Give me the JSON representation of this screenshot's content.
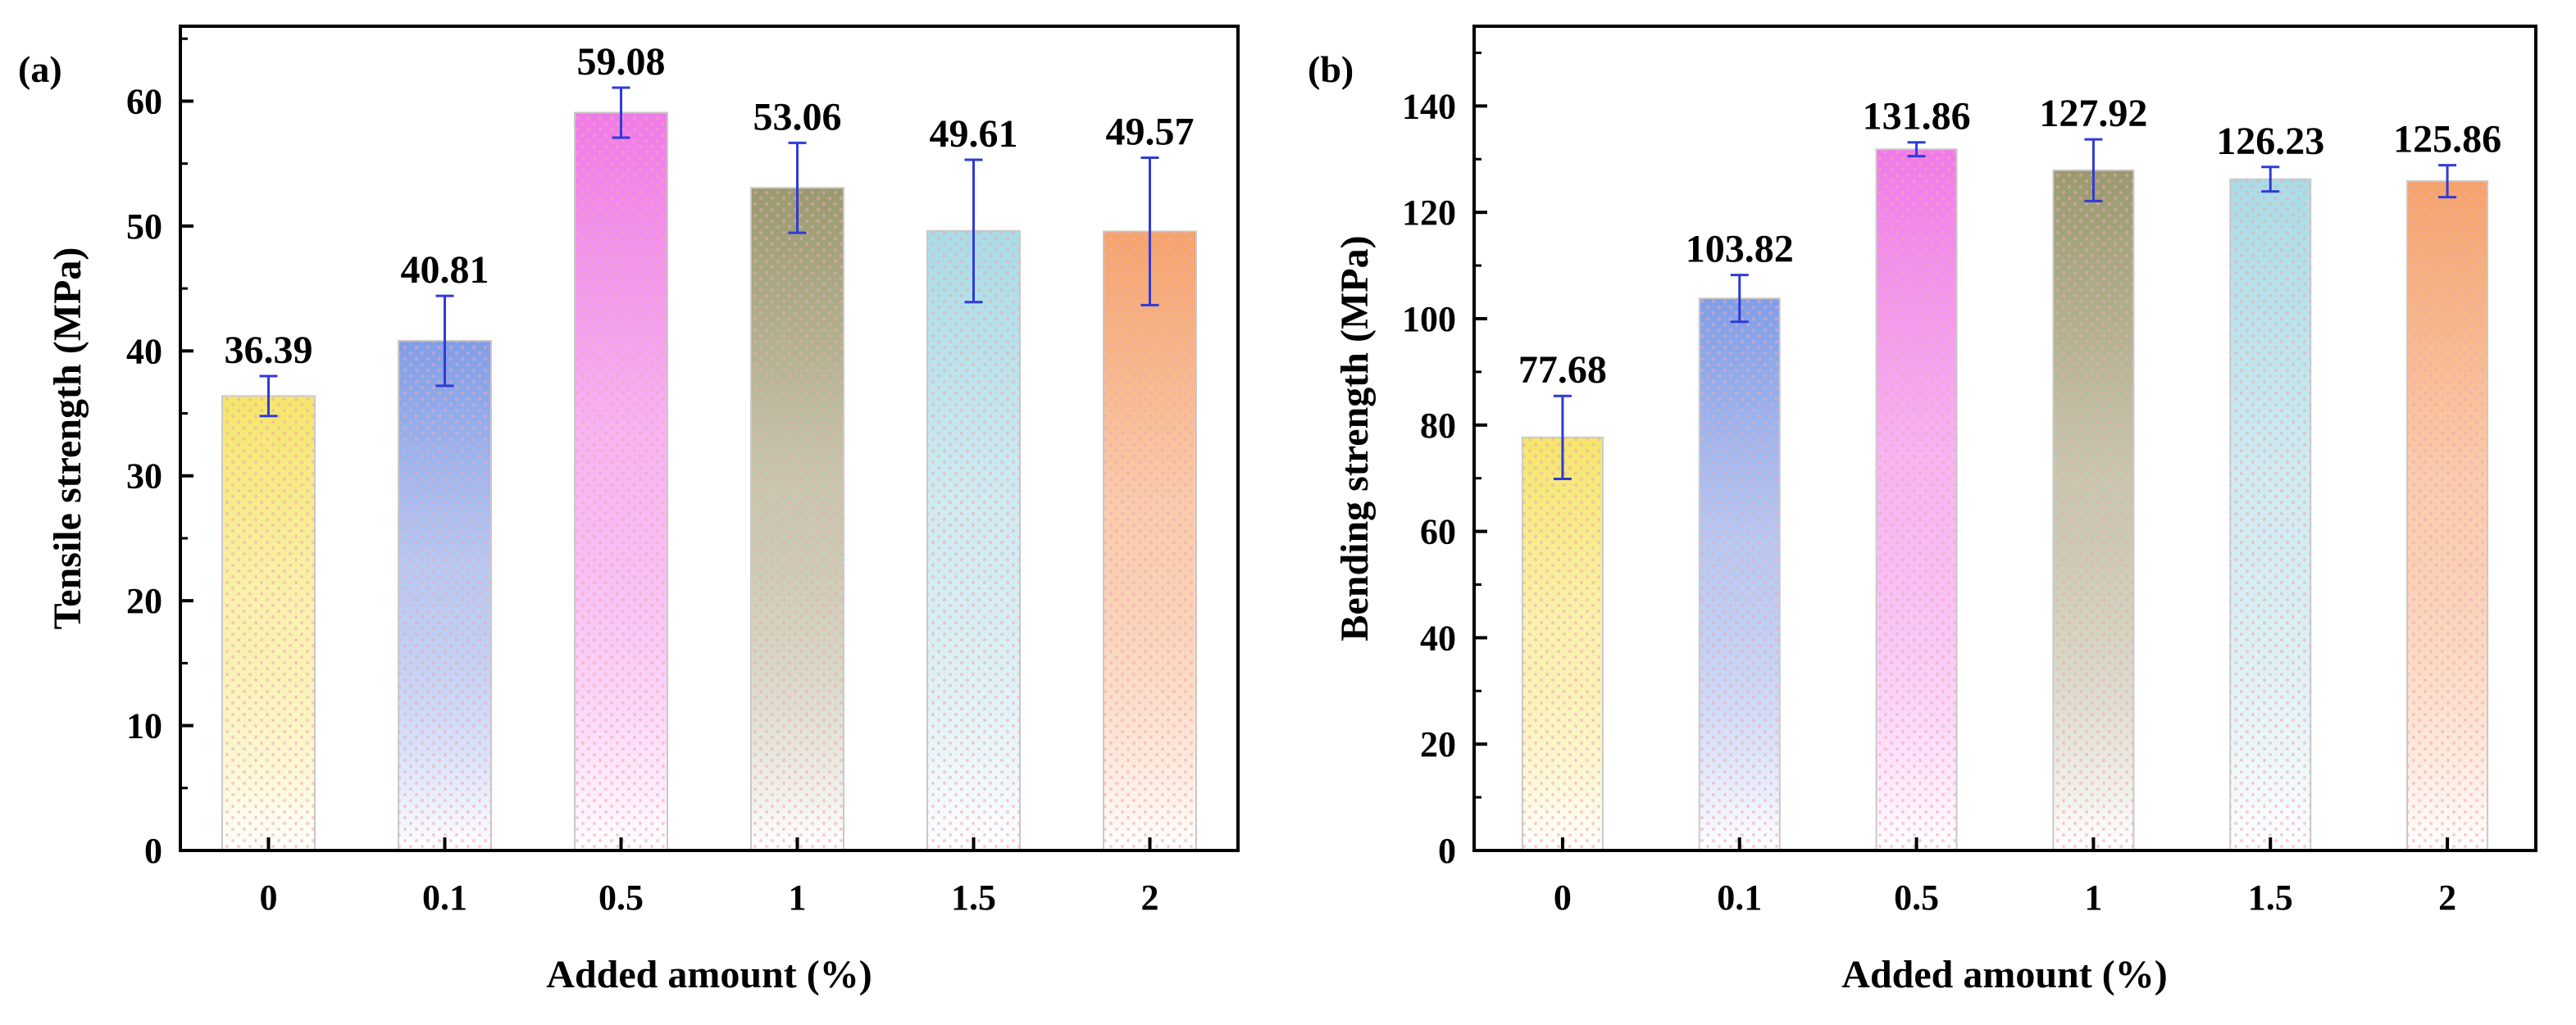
{
  "chart_data": [
    {
      "type": "bar",
      "panel": "(a)",
      "title": "",
      "xlabel": "Added amount (%)",
      "ylabel": "Tensile strength (MPa)",
      "categories": [
        "0",
        "0.1",
        "0.5",
        "1",
        "1.5",
        "2"
      ],
      "values": [
        36.39,
        40.81,
        59.08,
        53.06,
        49.61,
        49.57
      ],
      "errors": [
        1.6,
        3.6,
        2.0,
        3.6,
        5.7,
        5.9
      ],
      "value_labels": [
        "36.39",
        "40.81",
        "59.08",
        "53.06",
        "49.61",
        "49.57"
      ],
      "ylim": [
        0,
        66
      ],
      "yticks": [
        0,
        10,
        20,
        30,
        40,
        50,
        60
      ],
      "ytick_labels": [
        "0",
        "10",
        "20",
        "30",
        "40",
        "50",
        "60"
      ],
      "grid": false,
      "bar_colors": [
        "#f5e66a",
        "#7f9ee8",
        "#f07ae8",
        "#9a9a6e",
        "#a8dce6",
        "#f5a36a"
      ],
      "error_bar_color": "#2f3bd6"
    },
    {
      "type": "bar",
      "panel": "(b)",
      "title": "",
      "xlabel": "Added amount (%)",
      "ylabel": "Bending strength (MPa)",
      "categories": [
        "0",
        "0.1",
        "0.5",
        "1",
        "1.5",
        "2"
      ],
      "values": [
        77.68,
        103.82,
        131.86,
        127.92,
        126.23,
        125.86
      ],
      "errors": [
        7.8,
        4.4,
        1.3,
        5.8,
        2.3,
        3.0
      ],
      "value_labels": [
        "77.68",
        "103.82",
        "131.86",
        "127.92",
        "126.23",
        "125.86"
      ],
      "ylim": [
        0,
        155
      ],
      "yticks": [
        0,
        20,
        40,
        60,
        80,
        100,
        120,
        140
      ],
      "ytick_labels": [
        "0",
        "20",
        "40",
        "60",
        "80",
        "100",
        "120",
        "140"
      ],
      "grid": false,
      "bar_colors": [
        "#f5e66a",
        "#7f9ee8",
        "#f07ae8",
        "#9a9a6e",
        "#a8dce6",
        "#f5a36a"
      ],
      "error_bar_color": "#2f3bd6"
    }
  ]
}
